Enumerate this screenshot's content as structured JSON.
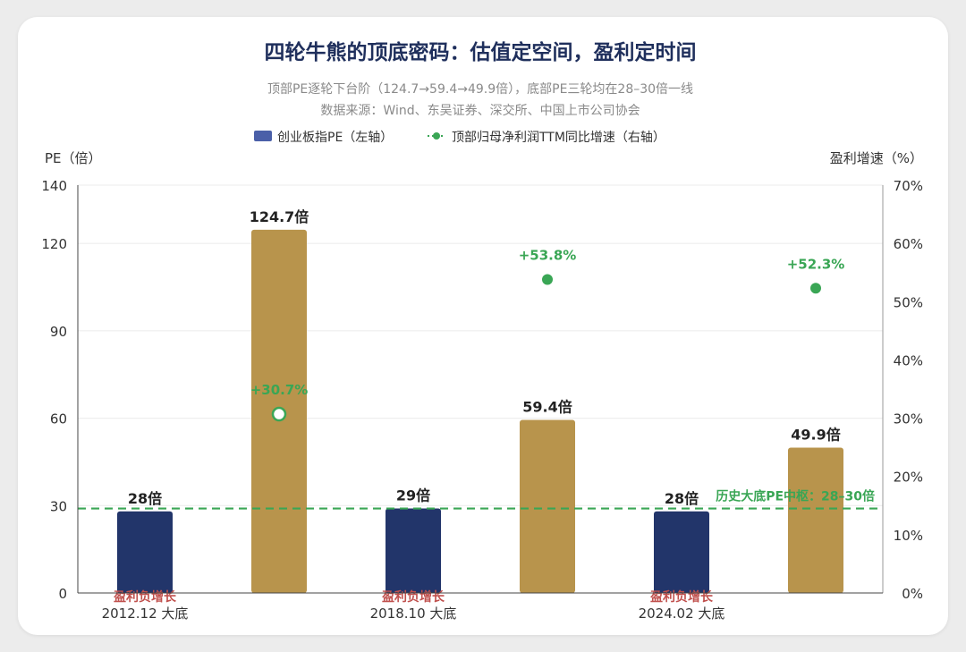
{
  "chart_data": {
    "type": "bar",
    "title": "四轮牛熊的顶底密码：估值定空间，盈利定时间",
    "subtitle": "顶部PE逐轮下台阶（124.7→59.4→49.9倍），底部PE三轮均在28–30倍一线",
    "source": "数据来源：Wind、东吴证券、深交所、中国上市公司协会",
    "legend": {
      "bar_label": "创业板指PE（左轴）",
      "line_label": "顶部归母净利润TTM同比增速（右轴）",
      "position": "top"
    },
    "ylabel_left": "PE（倍）",
    "ylabel_right": "盈利增速（%）",
    "ylim_left": [
      0,
      140
    ],
    "ylim_right": [
      0,
      70
    ],
    "yticks_left": [
      "0",
      "30",
      "60",
      "90",
      "120",
      "140"
    ],
    "yticks_right": [
      "0%",
      "10%",
      "20%",
      "30%",
      "40%",
      "50%",
      "60%",
      "70%"
    ],
    "grid": true,
    "bars": [
      {
        "value": 28,
        "label": "28倍",
        "kind": "bottom",
        "color": "#22356a",
        "note": "盈利负增长"
      },
      {
        "value": 124.7,
        "label": "124.7倍",
        "kind": "top",
        "color": "#b8944c"
      },
      {
        "value": 29,
        "label": "29倍",
        "kind": "bottom",
        "color": "#22356a",
        "note": "盈利负增长"
      },
      {
        "value": 59.4,
        "label": "59.4倍",
        "kind": "top",
        "color": "#b8944c"
      },
      {
        "value": 28,
        "label": "28倍",
        "kind": "bottom",
        "color": "#22356a",
        "note": "盈利负增长"
      },
      {
        "value": 49.9,
        "label": "49.9倍",
        "kind": "top",
        "color": "#b8944c"
      }
    ],
    "categories": [
      "2012.12 大底",
      "2018.10 大底",
      "2024.02 大底"
    ],
    "growth_points": [
      {
        "bar_index": 1,
        "value": 30.7,
        "label": "+30.7%",
        "hollow": true
      },
      {
        "bar_index": 3,
        "value": 53.8,
        "label": "+53.8%",
        "hollow": false
      },
      {
        "bar_index": 5,
        "value": 52.3,
        "label": "+52.3%",
        "hollow": false
      }
    ],
    "reference_line": {
      "value": 29,
      "label": "历史大底PE中枢：28–30倍"
    },
    "colors": {
      "bottom_bar": "#22356a",
      "top_bar": "#b8944c",
      "growth": "#3aa655",
      "note": "#c0504d",
      "title": "#1f2f5c"
    }
  }
}
